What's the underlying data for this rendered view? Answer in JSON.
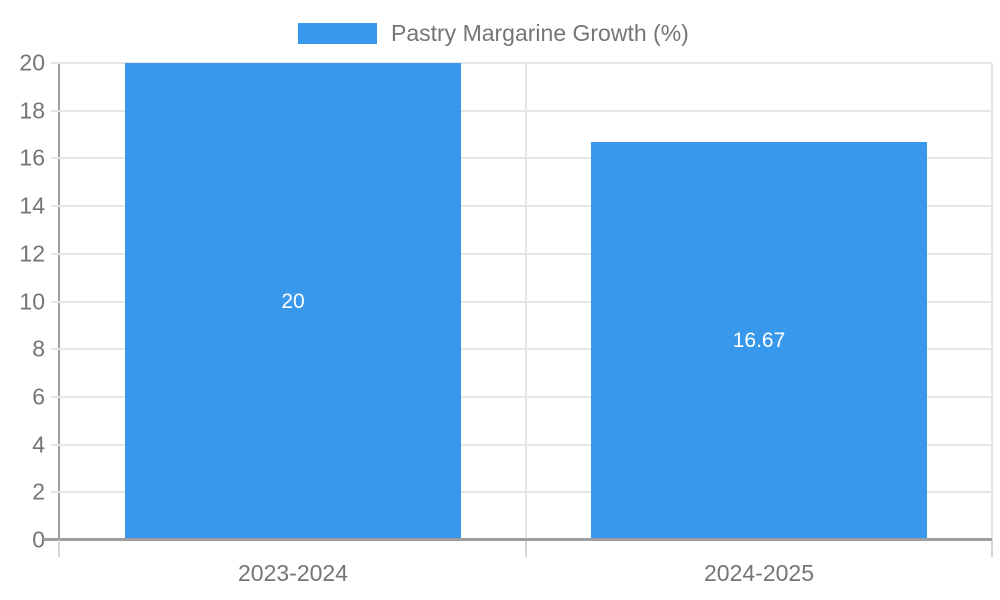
{
  "chart_data": {
    "type": "bar",
    "title": "",
    "legend": {
      "label": "Pastry Margarine Growth (%)",
      "position": "top"
    },
    "categories": [
      "2023-2024",
      "2024-2025"
    ],
    "series": [
      {
        "name": "Pastry Margarine Growth (%)",
        "values": [
          20,
          16.67
        ],
        "value_labels": [
          "20",
          "16.67"
        ]
      }
    ],
    "ylim": [
      0,
      20
    ],
    "yticks": [
      0,
      2,
      4,
      6,
      8,
      10,
      12,
      14,
      16,
      18,
      20
    ],
    "grid": true,
    "colors": {
      "bar": "#3899ec",
      "grid": "#e5e5e5",
      "axis": "#9e9e9e",
      "below_axis_tick": "#d6d6d6",
      "tick_label": "#757575",
      "legend_label": "#757575",
      "bar_label": "#ffffff",
      "background": "#ffffff"
    }
  }
}
